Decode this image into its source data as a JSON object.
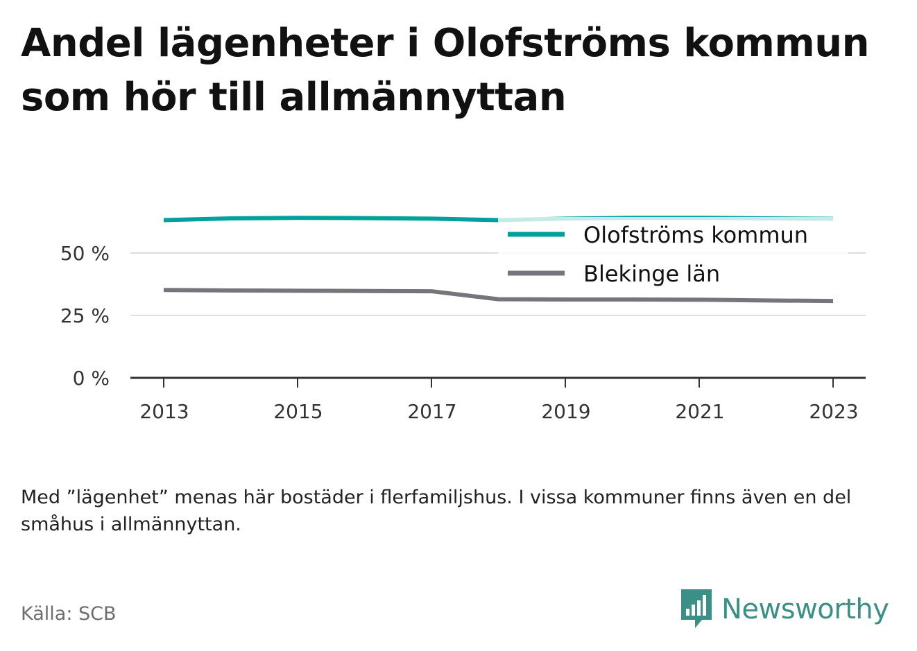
{
  "title": "Andel lägenheter i Olofströms kommun som hör till allmännyttan",
  "note": "Med ”lägenhet” menas här bostäder i flerfamiljshus. I vissa kommuner finns även en del småhus i allmännyttan.",
  "source": "Källa: SCB",
  "brand": {
    "name": "Newsworthy",
    "icon": "newsworthy-logo-icon",
    "color": "#3a8f86"
  },
  "chart_data": {
    "type": "line",
    "title": "Andel lägenheter i Olofströms kommun som hör till allmännyttan",
    "xlabel": "",
    "ylabel": "",
    "x": [
      2013,
      2014,
      2015,
      2016,
      2017,
      2018,
      2019,
      2020,
      2021,
      2022,
      2023
    ],
    "xticks": [
      2013,
      2015,
      2017,
      2019,
      2021,
      2023
    ],
    "xtick_labels": [
      "2013",
      "2015",
      "2017",
      "2019",
      "2021",
      "2023"
    ],
    "yticks": [
      0,
      25,
      50
    ],
    "ytick_labels": [
      "0 %",
      "25 %",
      "50 %"
    ],
    "ylim": [
      0,
      65
    ],
    "grid": "horizontal",
    "legend_position": "top-right",
    "series": [
      {
        "name": "Olofströms kommun",
        "color": "#00a19a",
        "values": [
          63.2,
          63.9,
          64.1,
          64.0,
          63.8,
          63.2,
          63.8,
          64.1,
          64.1,
          63.9,
          63.7
        ]
      },
      {
        "name": "Blekinge län",
        "color": "#76757b",
        "values": [
          35.2,
          35.0,
          34.9,
          34.8,
          34.7,
          31.5,
          31.4,
          31.4,
          31.3,
          31.0,
          30.8
        ]
      }
    ]
  }
}
